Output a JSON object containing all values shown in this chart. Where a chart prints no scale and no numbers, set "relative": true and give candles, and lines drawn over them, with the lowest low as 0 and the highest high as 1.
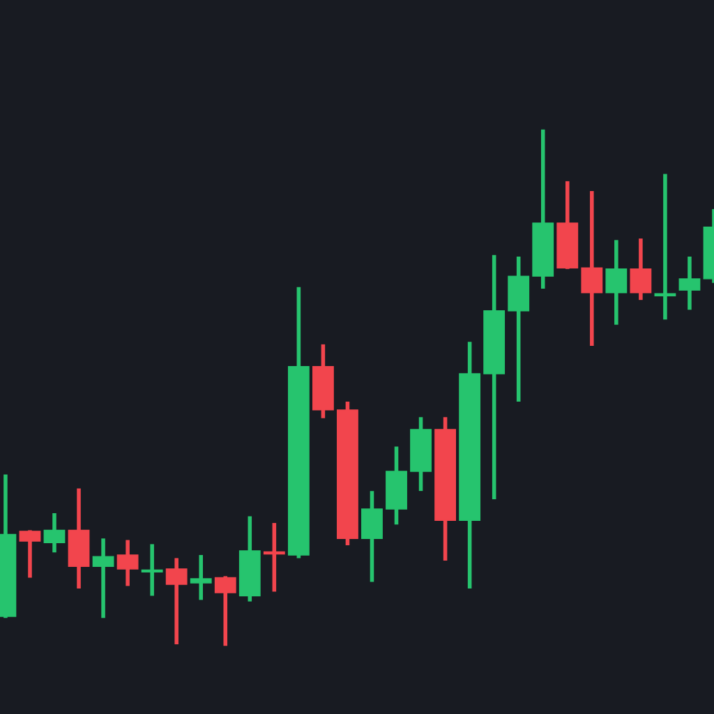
{
  "chart_data": {
    "type": "candlestick",
    "relative": true,
    "categories": [
      null,
      null,
      null,
      null,
      null,
      null,
      null,
      null,
      null,
      null,
      null,
      null,
      null,
      null,
      null,
      null,
      null,
      null,
      null,
      null,
      null,
      null,
      null,
      null,
      null,
      null,
      null,
      null,
      null,
      null
    ],
    "ohlc": [
      [
        0.057,
        0.332,
        0.054,
        0.216
      ],
      [
        0.222,
        0.224,
        0.132,
        0.203
      ],
      [
        0.2,
        0.257,
        0.181,
        0.224
      ],
      [
        0.224,
        0.305,
        0.111,
        0.154
      ],
      [
        0.154,
        0.208,
        0.054,
        0.173
      ],
      [
        0.176,
        0.205,
        0.116,
        0.149
      ],
      [
        0.143,
        0.197,
        0.097,
        0.146
      ],
      [
        0.149,
        0.17,
        0.003,
        0.119
      ],
      [
        0.122,
        0.176,
        0.089,
        0.13
      ],
      [
        0.132,
        0.135,
        0,
        0.103
      ],
      [
        0.097,
        0.251,
        0.086,
        0.184
      ],
      [
        0.181,
        0.238,
        0.105,
        0.178
      ],
      [
        0.176,
        0.695,
        0.17,
        0.541
      ],
      [
        0.541,
        0.584,
        0.441,
        0.457
      ],
      [
        0.457,
        0.473,
        0.195,
        0.208
      ],
      [
        0.208,
        0.3,
        0.124,
        0.265
      ],
      [
        0.265,
        0.386,
        0.235,
        0.338
      ],
      [
        0.338,
        0.443,
        0.3,
        0.419
      ],
      [
        0.419,
        0.443,
        0.165,
        0.243
      ],
      [
        0.243,
        0.589,
        0.111,
        0.527
      ],
      [
        0.527,
        0.757,
        0.284,
        0.649
      ],
      [
        0.649,
        0.754,
        0.473,
        0.716
      ],
      [
        0.716,
        1,
        0.692,
        0.819
      ],
      [
        0.819,
        0.9,
        0.73,
        0.732
      ],
      [
        0.732,
        0.881,
        0.581,
        0.684
      ],
      [
        0.684,
        0.786,
        0.622,
        0.73
      ],
      [
        0.73,
        0.789,
        0.67,
        0.684
      ],
      [
        0.678,
        0.914,
        0.632,
        0.681
      ],
      [
        0.689,
        0.754,
        0.651,
        0.711
      ],
      [
        0.711,
        0.846,
        0.703,
        0.811
      ]
    ],
    "colors": [
      "#26c46e",
      "#f2454d",
      "#26c46e",
      "#f2454d",
      "#26c46e",
      "#f2454d",
      "#26c46e",
      "#f2454d",
      "#26c46e",
      "#f2454d",
      "#26c46e",
      "#f2454d",
      "#26c46e",
      "#f2454d",
      "#f2454d",
      "#26c46e",
      "#26c46e",
      "#26c46e",
      "#f2454d",
      "#26c46e",
      "#26c46e",
      "#26c46e",
      "#26c46e",
      "#f2454d",
      "#f2454d",
      "#26c46e",
      "#f2454d",
      "#26c46e",
      "#26c46e",
      "#26c46e"
    ]
  }
}
